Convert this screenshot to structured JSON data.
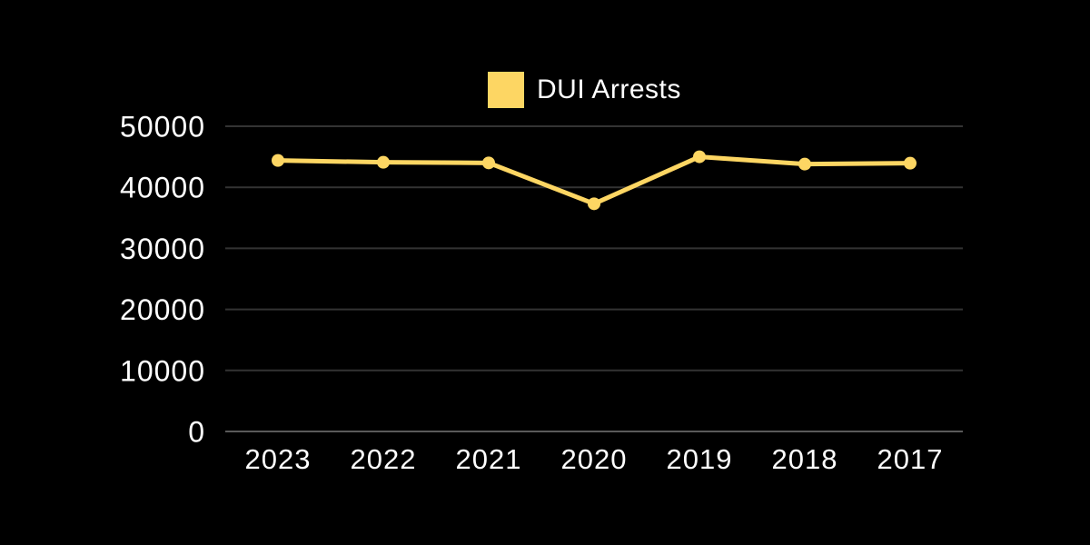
{
  "legend": {
    "label": "DUI Arrests"
  },
  "colors": {
    "background": "#000000",
    "accent": "#FDD663",
    "grid": "#333333",
    "axis_line": "#5A5A5A",
    "text": "#FFFFFF"
  },
  "chart_data": {
    "type": "line",
    "categories": [
      "2023",
      "2022",
      "2021",
      "2020",
      "2019",
      "2018",
      "2017"
    ],
    "series": [
      {
        "name": "DUI Arrests",
        "values": [
          44400,
          44100,
          44000,
          37300,
          45000,
          43800,
          43950
        ]
      }
    ],
    "title": "",
    "xlabel": "",
    "ylabel": "",
    "ylim": [
      0,
      50000
    ],
    "y_ticks": [
      0,
      10000,
      20000,
      30000,
      40000,
      50000
    ],
    "y_tick_labels": [
      "0",
      "10000",
      "20000",
      "30000",
      "40000",
      "50000"
    ],
    "grid": true,
    "legend_position": "top-center",
    "marker": "circle"
  }
}
